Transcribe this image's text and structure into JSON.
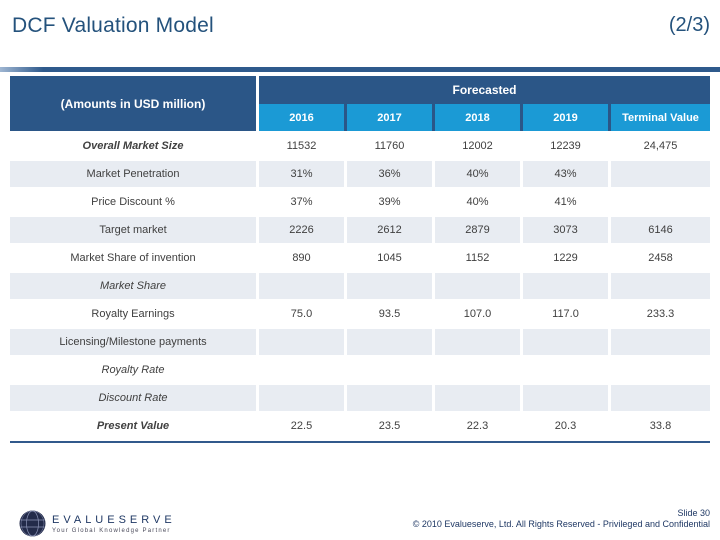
{
  "slide": {
    "title": "DCF Valuation Model",
    "page_indicator": "(2/3)"
  },
  "table": {
    "corner_label": "(Amounts in USD million)",
    "group_header": "Forecasted",
    "columns": [
      "2016",
      "2017",
      "2018",
      "2019",
      "Terminal Value"
    ],
    "rows": [
      {
        "label": "Overall Market Size",
        "style": "bold-italic",
        "values": [
          "11532",
          "11760",
          "12002",
          "12239",
          "24,475"
        ]
      },
      {
        "label": "Market Penetration",
        "style": "normal",
        "values": [
          "31%",
          "36%",
          "40%",
          "43%",
          ""
        ]
      },
      {
        "label": "Price Discount %",
        "style": "normal",
        "values": [
          "37%",
          "39%",
          "40%",
          "41%",
          ""
        ]
      },
      {
        "label": "Target market",
        "style": "normal",
        "values": [
          "2226",
          "2612",
          "2879",
          "3073",
          "6146"
        ]
      },
      {
        "label": "Market Share of invention",
        "style": "normal",
        "values": [
          "890",
          "1045",
          "1152",
          "1229",
          "2458"
        ]
      },
      {
        "label": "Market Share",
        "style": "italic",
        "values": [
          "",
          "",
          "",
          "",
          ""
        ]
      },
      {
        "label": "Royalty Earnings",
        "style": "normal",
        "values": [
          "75.0",
          "93.5",
          "107.0",
          "117.0",
          "233.3"
        ]
      },
      {
        "label": "Licensing/Milestone payments",
        "style": "normal",
        "values": [
          "",
          "",
          "",
          "",
          ""
        ]
      },
      {
        "label": "Royalty Rate",
        "style": "italic",
        "values": [
          "",
          "",
          "",
          "",
          ""
        ]
      },
      {
        "label": "Discount Rate",
        "style": "italic",
        "values": [
          "",
          "",
          "",
          "",
          ""
        ]
      },
      {
        "label": "Present Value",
        "style": "bold-italic",
        "values": [
          "22.5",
          "23.5",
          "22.3",
          "20.3",
          "33.8"
        ]
      }
    ]
  },
  "footer": {
    "logo_name": "EVALUESERVE",
    "logo_tagline": "Your Global Knowledge Partner",
    "slide_number": "Slide 30",
    "copyright": "© 2010 Evalueserve, Ltd. All Rights Reserved - Privileged and Confidential"
  },
  "colors": {
    "header_navy": "#2B5687",
    "year_blue": "#1B9AD5",
    "band_gray": "#E8ECF2",
    "title_blue": "#24527C",
    "rule_blue": "#2F5A8C",
    "footer_navy": "#1F3864"
  }
}
